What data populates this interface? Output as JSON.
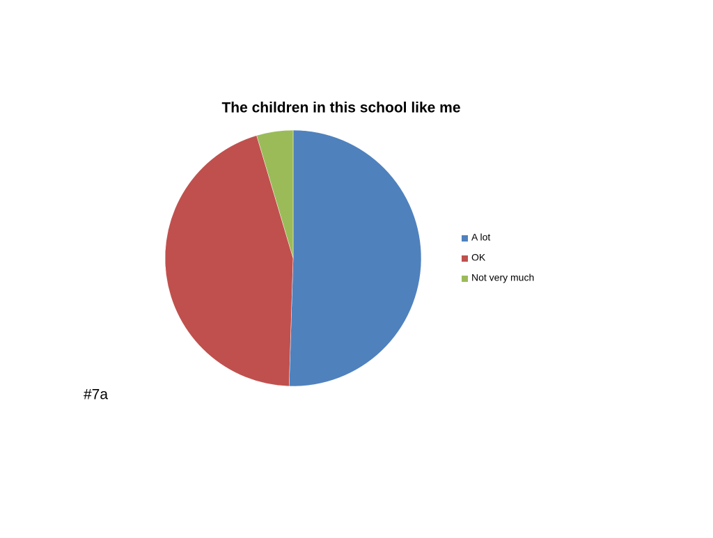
{
  "chart_data": {
    "type": "pie",
    "title": "The children in this school like me",
    "categories": [
      "A lot",
      "OK",
      "Not very much"
    ],
    "values": [
      50.5,
      44.9,
      4.6
    ],
    "colors": [
      "#4f81bd",
      "#c0504d",
      "#9bbb59"
    ],
    "legend": "right",
    "annotation": "#7a"
  }
}
